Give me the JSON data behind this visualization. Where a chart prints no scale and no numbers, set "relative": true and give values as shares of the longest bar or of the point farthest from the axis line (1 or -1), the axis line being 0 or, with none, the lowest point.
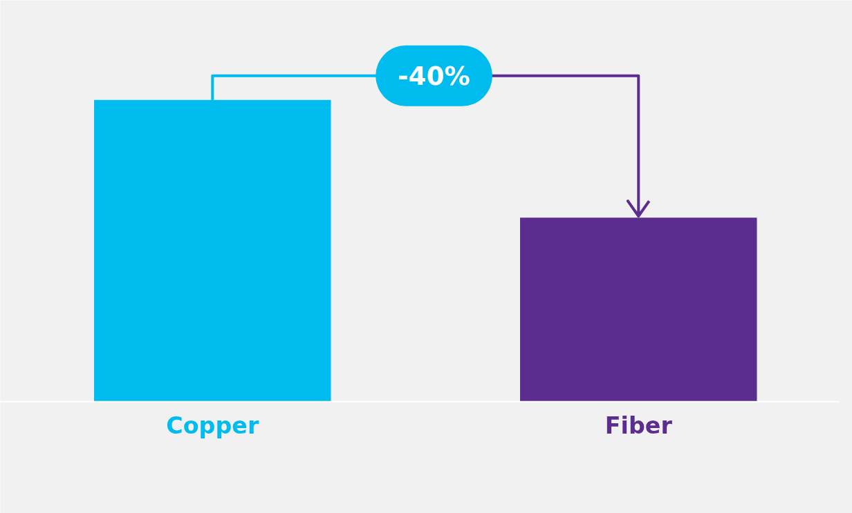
{
  "chart_data": {
    "type": "bar",
    "relative": true,
    "categories": [
      "Copper",
      "Fiber"
    ],
    "values": [
      1,
      0.61
    ],
    "colors": [
      "#00bcee",
      "#5b2d8f"
    ],
    "annotations": [
      "-40%"
    ],
    "grid": false
  }
}
